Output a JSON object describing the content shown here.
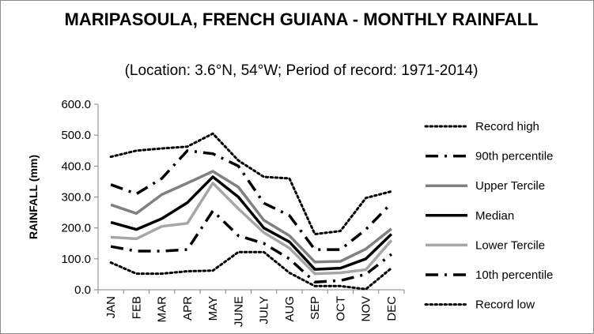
{
  "chart_data": {
    "type": "line",
    "title": "MARIPASOULA, FRENCH GUIANA - MONTHLY RAINFALL",
    "subtitle": "(Location: 3.6°N, 54°W; Period of record: 1971-2014)",
    "xlabel": "",
    "ylabel": "RAINFALL (mm)",
    "ylim": [
      0,
      600
    ],
    "yticks": [
      "0.0",
      "100.0",
      "200.0",
      "300.0",
      "400.0",
      "500.0",
      "600.0"
    ],
    "grid": false,
    "legend_position": "right",
    "categories": [
      "JAN",
      "FEB",
      "MAR",
      "APR",
      "MAY",
      "JUNE",
      "JULY",
      "AUG",
      "SEP",
      "OCT",
      "NOV",
      "DEC"
    ],
    "series": [
      {
        "name": "Record high",
        "style": "dotted",
        "color": "#000000",
        "values": [
          430,
          450,
          457,
          463,
          505,
          418,
          365,
          360,
          180,
          190,
          297,
          318
        ]
      },
      {
        "name": "90th percentile",
        "style": "dashdot",
        "color": "#000000",
        "values": [
          340,
          310,
          360,
          450,
          440,
          400,
          280,
          240,
          130,
          130,
          195,
          280
        ]
      },
      {
        "name": "Upper Tercile",
        "style": "solid",
        "color": "#808080",
        "values": [
          275,
          247,
          308,
          345,
          383,
          332,
          225,
          175,
          90,
          92,
          132,
          197
        ]
      },
      {
        "name": "Median",
        "style": "solid",
        "color": "#000000",
        "values": [
          218,
          195,
          230,
          282,
          365,
          300,
          200,
          155,
          66,
          70,
          100,
          180
        ]
      },
      {
        "name": "Lower Tercile",
        "style": "solid",
        "color": "#a6a6a6",
        "values": [
          170,
          165,
          205,
          215,
          345,
          262,
          185,
          135,
          52,
          55,
          65,
          160
        ]
      },
      {
        "name": "10th percentile",
        "style": "dashdot",
        "color": "#000000",
        "values": [
          140,
          125,
          125,
          130,
          255,
          175,
          150,
          100,
          25,
          30,
          50,
          115
        ]
      },
      {
        "name": "Record low",
        "style": "dotted",
        "color": "#000000",
        "values": [
          88,
          52,
          52,
          60,
          62,
          122,
          122,
          55,
          12,
          12,
          2,
          70
        ]
      }
    ]
  }
}
